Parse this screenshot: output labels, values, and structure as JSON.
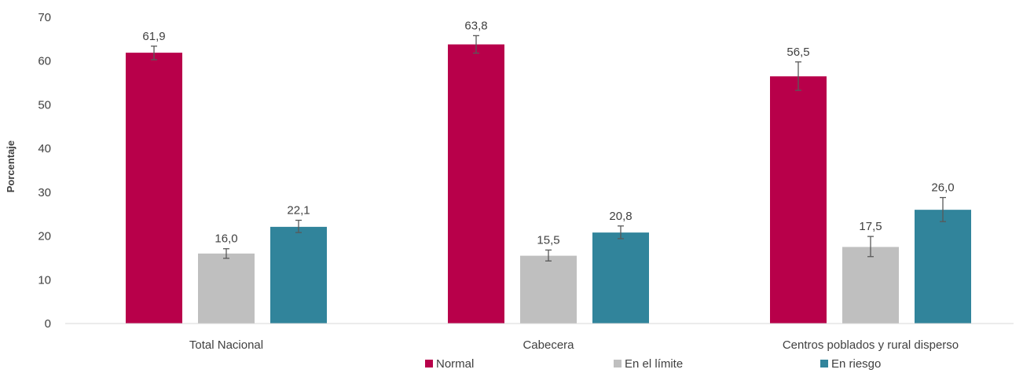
{
  "chart_data": {
    "type": "bar",
    "title": "",
    "xlabel": "",
    "ylabel": "Porcentaje",
    "ylim": [
      0,
      70
    ],
    "yticks": [
      0,
      10,
      20,
      30,
      40,
      50,
      60,
      70
    ],
    "categories": [
      "Total Nacional",
      "Cabecera",
      "Centros poblados y rural disperso"
    ],
    "series": [
      {
        "name": "Normal",
        "color": "#B8004A",
        "values": [
          61.9,
          63.8,
          56.5
        ],
        "labels": [
          "61,9",
          "63,8",
          "56,5"
        ],
        "err_low": [
          60.3,
          61.8,
          53.3
        ],
        "err_high": [
          63.4,
          65.8,
          59.8
        ]
      },
      {
        "name": "En el límite",
        "color": "#BFBFBF",
        "values": [
          16.0,
          15.5,
          17.5
        ],
        "labels": [
          "16,0",
          "15,5",
          "17,5"
        ],
        "err_low": [
          14.9,
          14.3,
          15.3
        ],
        "err_high": [
          17.1,
          16.8,
          19.9
        ]
      },
      {
        "name": "En riesgo",
        "color": "#31849B",
        "values": [
          22.1,
          20.8,
          26.0
        ],
        "labels": [
          "22,1",
          "20,8",
          "26,0"
        ],
        "err_low": [
          20.8,
          19.4,
          23.3
        ],
        "err_high": [
          23.6,
          22.3,
          28.8
        ]
      }
    ],
    "error_bar_color": "#595959",
    "grid": false,
    "legend_position": "bottom"
  }
}
